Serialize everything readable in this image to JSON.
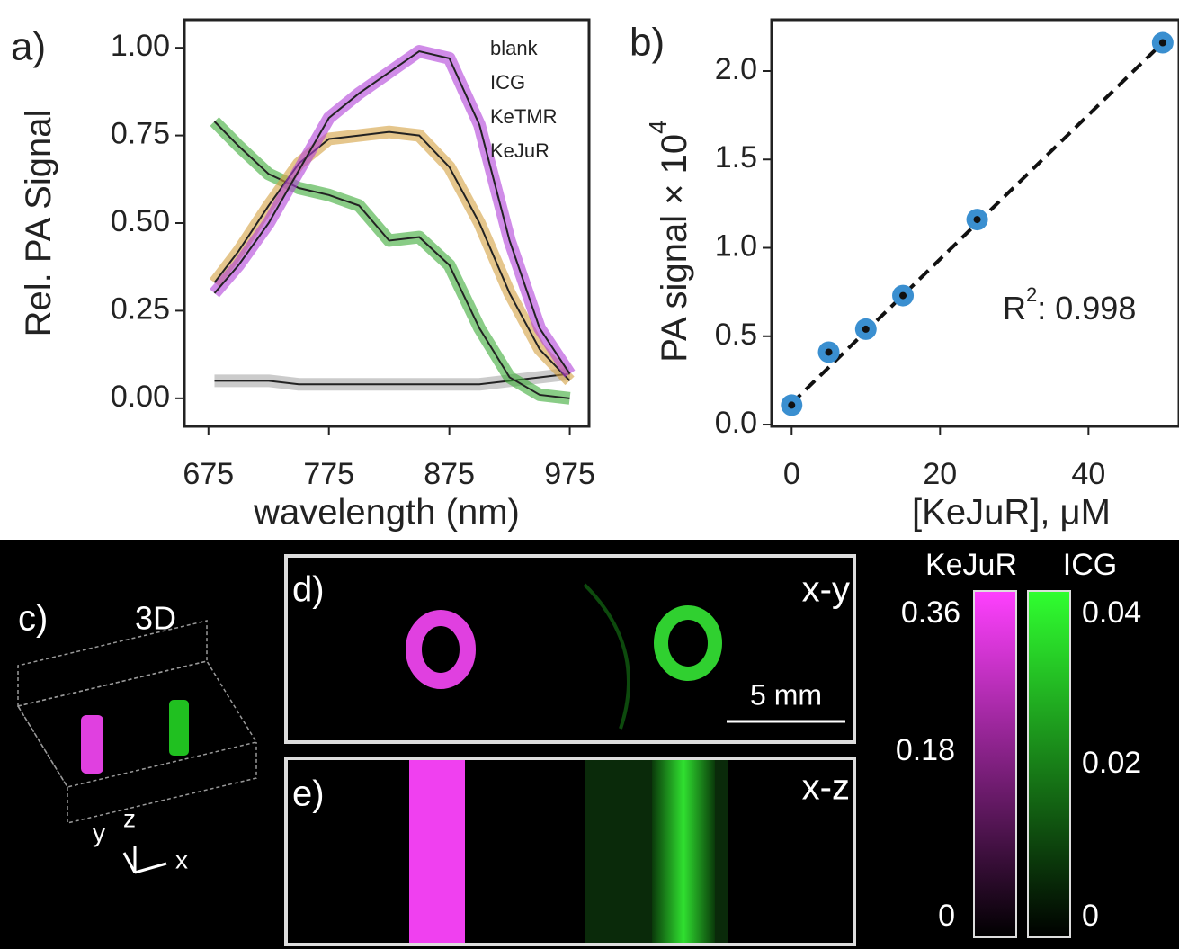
{
  "chart_data": [
    {
      "type": "line",
      "title": "a)",
      "xlabel": "wavelength (nm)",
      "ylabel": "Rel. PA Signal",
      "x": [
        680,
        700,
        725,
        750,
        775,
        800,
        825,
        850,
        875,
        900,
        925,
        950,
        975
      ],
      "series": [
        {
          "name": "blank",
          "color": "#a8a8a8",
          "values": [
            0.05,
            0.05,
            0.05,
            0.04,
            0.04,
            0.04,
            0.04,
            0.04,
            0.04,
            0.04,
            0.05,
            0.06,
            0.07
          ]
        },
        {
          "name": "ICG",
          "color": "#3aaa35",
          "values": [
            0.79,
            0.72,
            0.64,
            0.6,
            0.58,
            0.55,
            0.45,
            0.46,
            0.38,
            0.2,
            0.06,
            0.01,
            0.0
          ]
        },
        {
          "name": "KeTMR",
          "color": "#d4a040",
          "values": [
            0.33,
            0.42,
            0.55,
            0.67,
            0.74,
            0.75,
            0.76,
            0.75,
            0.66,
            0.5,
            0.3,
            0.14,
            0.05
          ]
        },
        {
          "name": "KeJuR",
          "color": "#b040d8",
          "values": [
            0.3,
            0.38,
            0.5,
            0.65,
            0.8,
            0.87,
            0.93,
            0.99,
            0.97,
            0.78,
            0.45,
            0.2,
            0.07
          ]
        }
      ],
      "xlim": [
        655,
        991
      ],
      "ylim": [
        -0.08,
        1.08
      ],
      "xticks": [
        675,
        775,
        875,
        975
      ],
      "yticks": [
        {
          "value": 0,
          "label": "0.00"
        },
        0.25,
        {
          "value": 0.5,
          "label": "0.50"
        },
        0.75,
        {
          "value": 1,
          "label": "1.00"
        }
      ]
    },
    {
      "type": "scatter",
      "title": "b)",
      "xlabel": "[KeJuR], μM",
      "ylabel": "PA signal × 10",
      "ylabel_exponent": "4",
      "annotation": {
        "text": "R",
        "superscript": "2",
        "value": ": 0.998"
      },
      "x": [
        0,
        5,
        10,
        15,
        25,
        50
      ],
      "series": [
        {
          "color": "#3a8fd0",
          "values": [
            0.11,
            0.41,
            0.54,
            0.73,
            1.16,
            2.16
          ]
        }
      ],
      "fit_line": {
        "x": [
          0,
          50
        ],
        "values": [
          0.12,
          2.16
        ]
      },
      "xlim": [
        -2.7,
        52.2
      ],
      "ylim": [
        -0.01,
        2.29
      ],
      "xticks": [
        0,
        20,
        40
      ],
      "yticks": [
        {
          "value": 0,
          "label": "0.0"
        },
        0.5,
        {
          "value": 1,
          "label": "1.0"
        },
        1.5,
        {
          "value": 2,
          "label": "2.0"
        }
      ]
    }
  ],
  "imaging": {
    "panel_c": {
      "label": "c)",
      "title": "3D",
      "axes": [
        "y",
        "z",
        "x"
      ]
    },
    "panel_d": {
      "label": "d)",
      "view": "x-y",
      "scale_bar": "5 mm"
    },
    "panel_e": {
      "label": "e)",
      "view": "x-z"
    },
    "colorbars": [
      {
        "name": "KeJuR",
        "ticks": [
          "0.36",
          "0.18",
          "0"
        ]
      },
      {
        "name": "ICG",
        "ticks": [
          "0.04",
          "0.02",
          "0"
        ]
      }
    ]
  }
}
